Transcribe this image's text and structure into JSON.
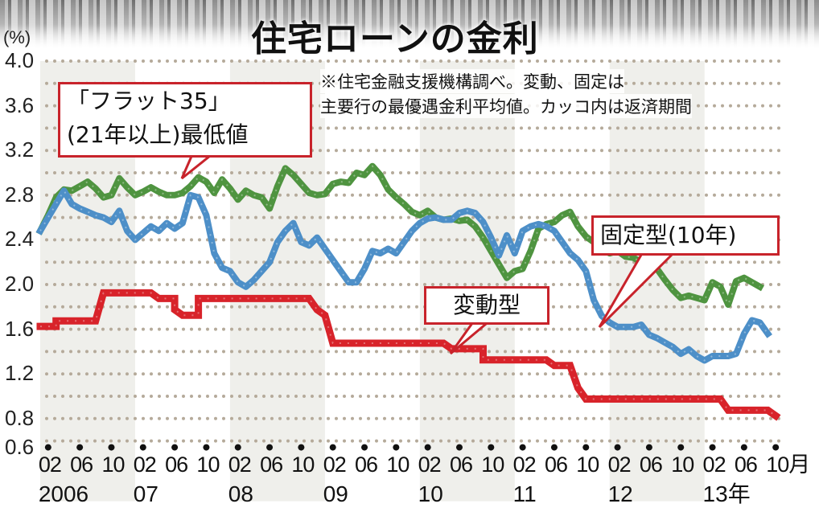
{
  "title": "住宅ローンの金利",
  "unit_label": "(%)",
  "note": {
    "line1": "※住宅金融支援機構調べ。変動、固定は",
    "line2": "主要行の最優遇金利平均値。カッコ内は返済期間"
  },
  "callouts": {
    "flat35_line1": "「フラット35」",
    "flat35_line2": "(21年以上)最低値",
    "fixed": "固定型(10年)",
    "variable": "変動型"
  },
  "y_ticks": [
    "4.0",
    "3.6",
    "3.2",
    "2.8",
    "2.4",
    "2.0",
    "1.6",
    "1.2",
    "0.8",
    "0.6"
  ],
  "x_month_labels": [
    "02",
    "06",
    "10"
  ],
  "x_last_month_suffix": "月",
  "x_years": [
    "2006",
    "07",
    "08",
    "09",
    "10",
    "11",
    "12",
    "13年"
  ],
  "colors": {
    "flat35": "#4f9440",
    "fixed": "#4d8fc8",
    "variable": "#d8232a",
    "callout_border": "#c8232b",
    "band": "#efefeb",
    "grid_dot": "#b5aa9a"
  },
  "chart_data": {
    "type": "line",
    "title": "住宅ローンの金利",
    "xlabel": "",
    "ylabel": "(%)",
    "ylim": [
      0.6,
      4.0
    ],
    "y_ticks": [
      4.0,
      3.6,
      3.2,
      2.8,
      2.4,
      2.0,
      1.6,
      1.2,
      0.8,
      0.6
    ],
    "grid": "dotted horizontal every 0.2",
    "x_unit": "month index from Jan 2006 (0 = 2006/01)",
    "x_range": [
      "2006/01",
      "2013/10"
    ],
    "x_tick_labels": [
      "2006/02",
      "06",
      "10",
      "07/02",
      "06",
      "10",
      "08/02",
      "06",
      "10",
      "09/02",
      "06",
      "10",
      "10/02",
      "06",
      "10",
      "11/02",
      "06",
      "10",
      "12/02",
      "06",
      "10",
      "13/02",
      "06",
      "10月"
    ],
    "series": [
      {
        "name": "「フラット35」(21年以上)最低値",
        "color": "#4f9440",
        "points": [
          [
            0,
            2.48
          ],
          [
            1,
            2.62
          ],
          [
            2,
            2.78
          ],
          [
            3,
            2.85
          ],
          [
            4,
            2.84
          ],
          [
            5,
            2.88
          ],
          [
            6,
            2.92
          ],
          [
            7,
            2.86
          ],
          [
            8,
            2.78
          ],
          [
            9,
            2.8
          ],
          [
            10,
            2.95
          ],
          [
            11,
            2.87
          ],
          [
            12,
            2.8
          ],
          [
            13,
            2.83
          ],
          [
            14,
            2.87
          ],
          [
            15,
            2.83
          ],
          [
            16,
            2.8
          ],
          [
            17,
            2.8
          ],
          [
            18,
            2.82
          ],
          [
            19,
            2.88
          ],
          [
            20,
            2.96
          ],
          [
            21,
            2.92
          ],
          [
            22,
            2.82
          ],
          [
            23,
            2.94
          ],
          [
            24,
            2.86
          ],
          [
            25,
            2.76
          ],
          [
            26,
            2.84
          ],
          [
            27,
            2.8
          ],
          [
            28,
            2.78
          ],
          [
            29,
            2.68
          ],
          [
            30,
            2.88
          ],
          [
            31,
            3.04
          ],
          [
            32,
            2.98
          ],
          [
            33,
            2.9
          ],
          [
            34,
            2.82
          ],
          [
            35,
            2.8
          ],
          [
            36,
            2.81
          ],
          [
            37,
            2.9
          ],
          [
            38,
            2.92
          ],
          [
            39,
            2.91
          ],
          [
            40,
            3.0
          ],
          [
            41,
            2.98
          ],
          [
            42,
            3.06
          ],
          [
            43,
            2.98
          ],
          [
            44,
            2.85
          ],
          [
            45,
            2.78
          ],
          [
            46,
            2.72
          ],
          [
            47,
            2.65
          ],
          [
            48,
            2.62
          ],
          [
            49,
            2.66
          ],
          [
            50,
            2.6
          ],
          [
            51,
            2.58
          ],
          [
            52,
            2.59
          ],
          [
            53,
            2.57
          ],
          [
            54,
            2.58
          ],
          [
            55,
            2.52
          ],
          [
            56,
            2.42
          ],
          [
            57,
            2.3
          ],
          [
            58,
            2.18
          ],
          [
            59,
            2.06
          ],
          [
            60,
            2.12
          ],
          [
            61,
            2.14
          ],
          [
            62,
            2.3
          ],
          [
            63,
            2.5
          ],
          [
            64,
            2.54
          ],
          [
            65,
            2.56
          ],
          [
            66,
            2.62
          ],
          [
            67,
            2.65
          ],
          [
            68,
            2.52
          ],
          [
            69,
            2.43
          ],
          [
            70,
            2.38
          ],
          [
            71,
            2.32
          ],
          [
            72,
            2.28
          ],
          [
            73,
            2.3
          ],
          [
            74,
            2.25
          ],
          [
            75,
            2.24
          ],
          [
            76,
            2.2
          ],
          [
            77,
            2.18
          ],
          [
            78,
            2.14
          ],
          [
            79,
            2.04
          ],
          [
            80,
            1.95
          ],
          [
            81,
            1.88
          ],
          [
            82,
            1.9
          ],
          [
            83,
            1.88
          ],
          [
            84,
            1.86
          ],
          [
            85,
            2.02
          ],
          [
            86,
            1.98
          ],
          [
            87,
            1.82
          ],
          [
            88,
            2.03
          ],
          [
            89,
            2.06
          ],
          [
            90,
            2.02
          ],
          [
            91,
            1.98
          ]
        ]
      },
      {
        "name": "固定型(10年)",
        "color": "#4d8fc8",
        "points": [
          [
            0,
            2.48
          ],
          [
            1,
            2.6
          ],
          [
            2,
            2.72
          ],
          [
            3,
            2.84
          ],
          [
            4,
            2.72
          ],
          [
            5,
            2.68
          ],
          [
            6,
            2.65
          ],
          [
            7,
            2.62
          ],
          [
            8,
            2.6
          ],
          [
            9,
            2.56
          ],
          [
            10,
            2.66
          ],
          [
            11,
            2.48
          ],
          [
            12,
            2.4
          ],
          [
            13,
            2.46
          ],
          [
            14,
            2.52
          ],
          [
            15,
            2.48
          ],
          [
            16,
            2.55
          ],
          [
            17,
            2.5
          ],
          [
            18,
            2.55
          ],
          [
            19,
            2.8
          ],
          [
            20,
            2.78
          ],
          [
            21,
            2.62
          ],
          [
            22,
            2.28
          ],
          [
            23,
            2.15
          ],
          [
            24,
            2.12
          ],
          [
            25,
            2.02
          ],
          [
            26,
            1.98
          ],
          [
            27,
            2.04
          ],
          [
            28,
            2.12
          ],
          [
            29,
            2.2
          ],
          [
            30,
            2.38
          ],
          [
            31,
            2.48
          ],
          [
            32,
            2.55
          ],
          [
            33,
            2.38
          ],
          [
            34,
            2.35
          ],
          [
            35,
            2.42
          ],
          [
            36,
            2.32
          ],
          [
            37,
            2.22
          ],
          [
            38,
            2.12
          ],
          [
            39,
            2.02
          ],
          [
            40,
            2.02
          ],
          [
            41,
            2.14
          ],
          [
            42,
            2.3
          ],
          [
            43,
            2.28
          ],
          [
            44,
            2.32
          ],
          [
            45,
            2.28
          ],
          [
            46,
            2.38
          ],
          [
            47,
            2.48
          ],
          [
            48,
            2.55
          ],
          [
            49,
            2.59
          ],
          [
            50,
            2.6
          ],
          [
            51,
            2.58
          ],
          [
            52,
            2.58
          ],
          [
            53,
            2.64
          ],
          [
            54,
            2.66
          ],
          [
            55,
            2.64
          ],
          [
            56,
            2.56
          ],
          [
            57,
            2.42
          ],
          [
            58,
            2.26
          ],
          [
            59,
            2.44
          ],
          [
            60,
            2.28
          ],
          [
            61,
            2.48
          ],
          [
            62,
            2.52
          ],
          [
            63,
            2.54
          ],
          [
            64,
            2.52
          ],
          [
            65,
            2.48
          ],
          [
            66,
            2.38
          ],
          [
            67,
            2.28
          ],
          [
            68,
            2.22
          ],
          [
            69,
            2.12
          ],
          [
            70,
            1.86
          ],
          [
            71,
            1.72
          ],
          [
            72,
            1.66
          ],
          [
            73,
            1.62
          ],
          [
            74,
            1.62
          ],
          [
            75,
            1.62
          ],
          [
            76,
            1.64
          ],
          [
            77,
            1.55
          ],
          [
            78,
            1.52
          ],
          [
            79,
            1.48
          ],
          [
            80,
            1.44
          ],
          [
            81,
            1.38
          ],
          [
            82,
            1.42
          ],
          [
            83,
            1.36
          ],
          [
            84,
            1.32
          ],
          [
            85,
            1.36
          ],
          [
            86,
            1.36
          ],
          [
            87,
            1.36
          ],
          [
            88,
            1.38
          ],
          [
            89,
            1.56
          ],
          [
            90,
            1.68
          ],
          [
            91,
            1.66
          ],
          [
            92,
            1.56
          ]
        ]
      },
      {
        "name": "変動型",
        "color": "#d8232a",
        "points": [
          [
            0,
            1.625
          ],
          [
            2,
            1.625
          ],
          [
            2,
            1.675
          ],
          [
            7,
            1.675
          ],
          [
            8,
            1.925
          ],
          [
            14,
            1.925
          ],
          [
            15,
            1.875
          ],
          [
            17,
            1.875
          ],
          [
            17,
            1.775
          ],
          [
            18,
            1.725
          ],
          [
            20,
            1.725
          ],
          [
            20,
            1.875
          ],
          [
            34,
            1.875
          ],
          [
            35,
            1.775
          ],
          [
            36,
            1.725
          ],
          [
            37,
            1.475
          ],
          [
            51,
            1.475
          ],
          [
            52,
            1.425
          ],
          [
            53,
            1.425
          ],
          [
            56,
            1.425
          ],
          [
            56,
            1.325
          ],
          [
            64,
            1.325
          ],
          [
            65,
            1.275
          ],
          [
            67,
            1.275
          ],
          [
            68,
            1.075
          ],
          [
            69,
            0.975
          ],
          [
            73,
            0.975
          ],
          [
            75,
            0.975
          ],
          [
            76,
            0.975
          ],
          [
            86,
            0.975
          ],
          [
            87,
            0.875
          ],
          [
            92,
            0.875
          ],
          [
            93,
            0.825
          ]
        ]
      }
    ],
    "legend": "callout labels on lines",
    "annotations": [
      "※住宅金融支援機構調べ。変動、固定は主要行の最優遇金利平均値。カッコ内は返済期間"
    ]
  }
}
